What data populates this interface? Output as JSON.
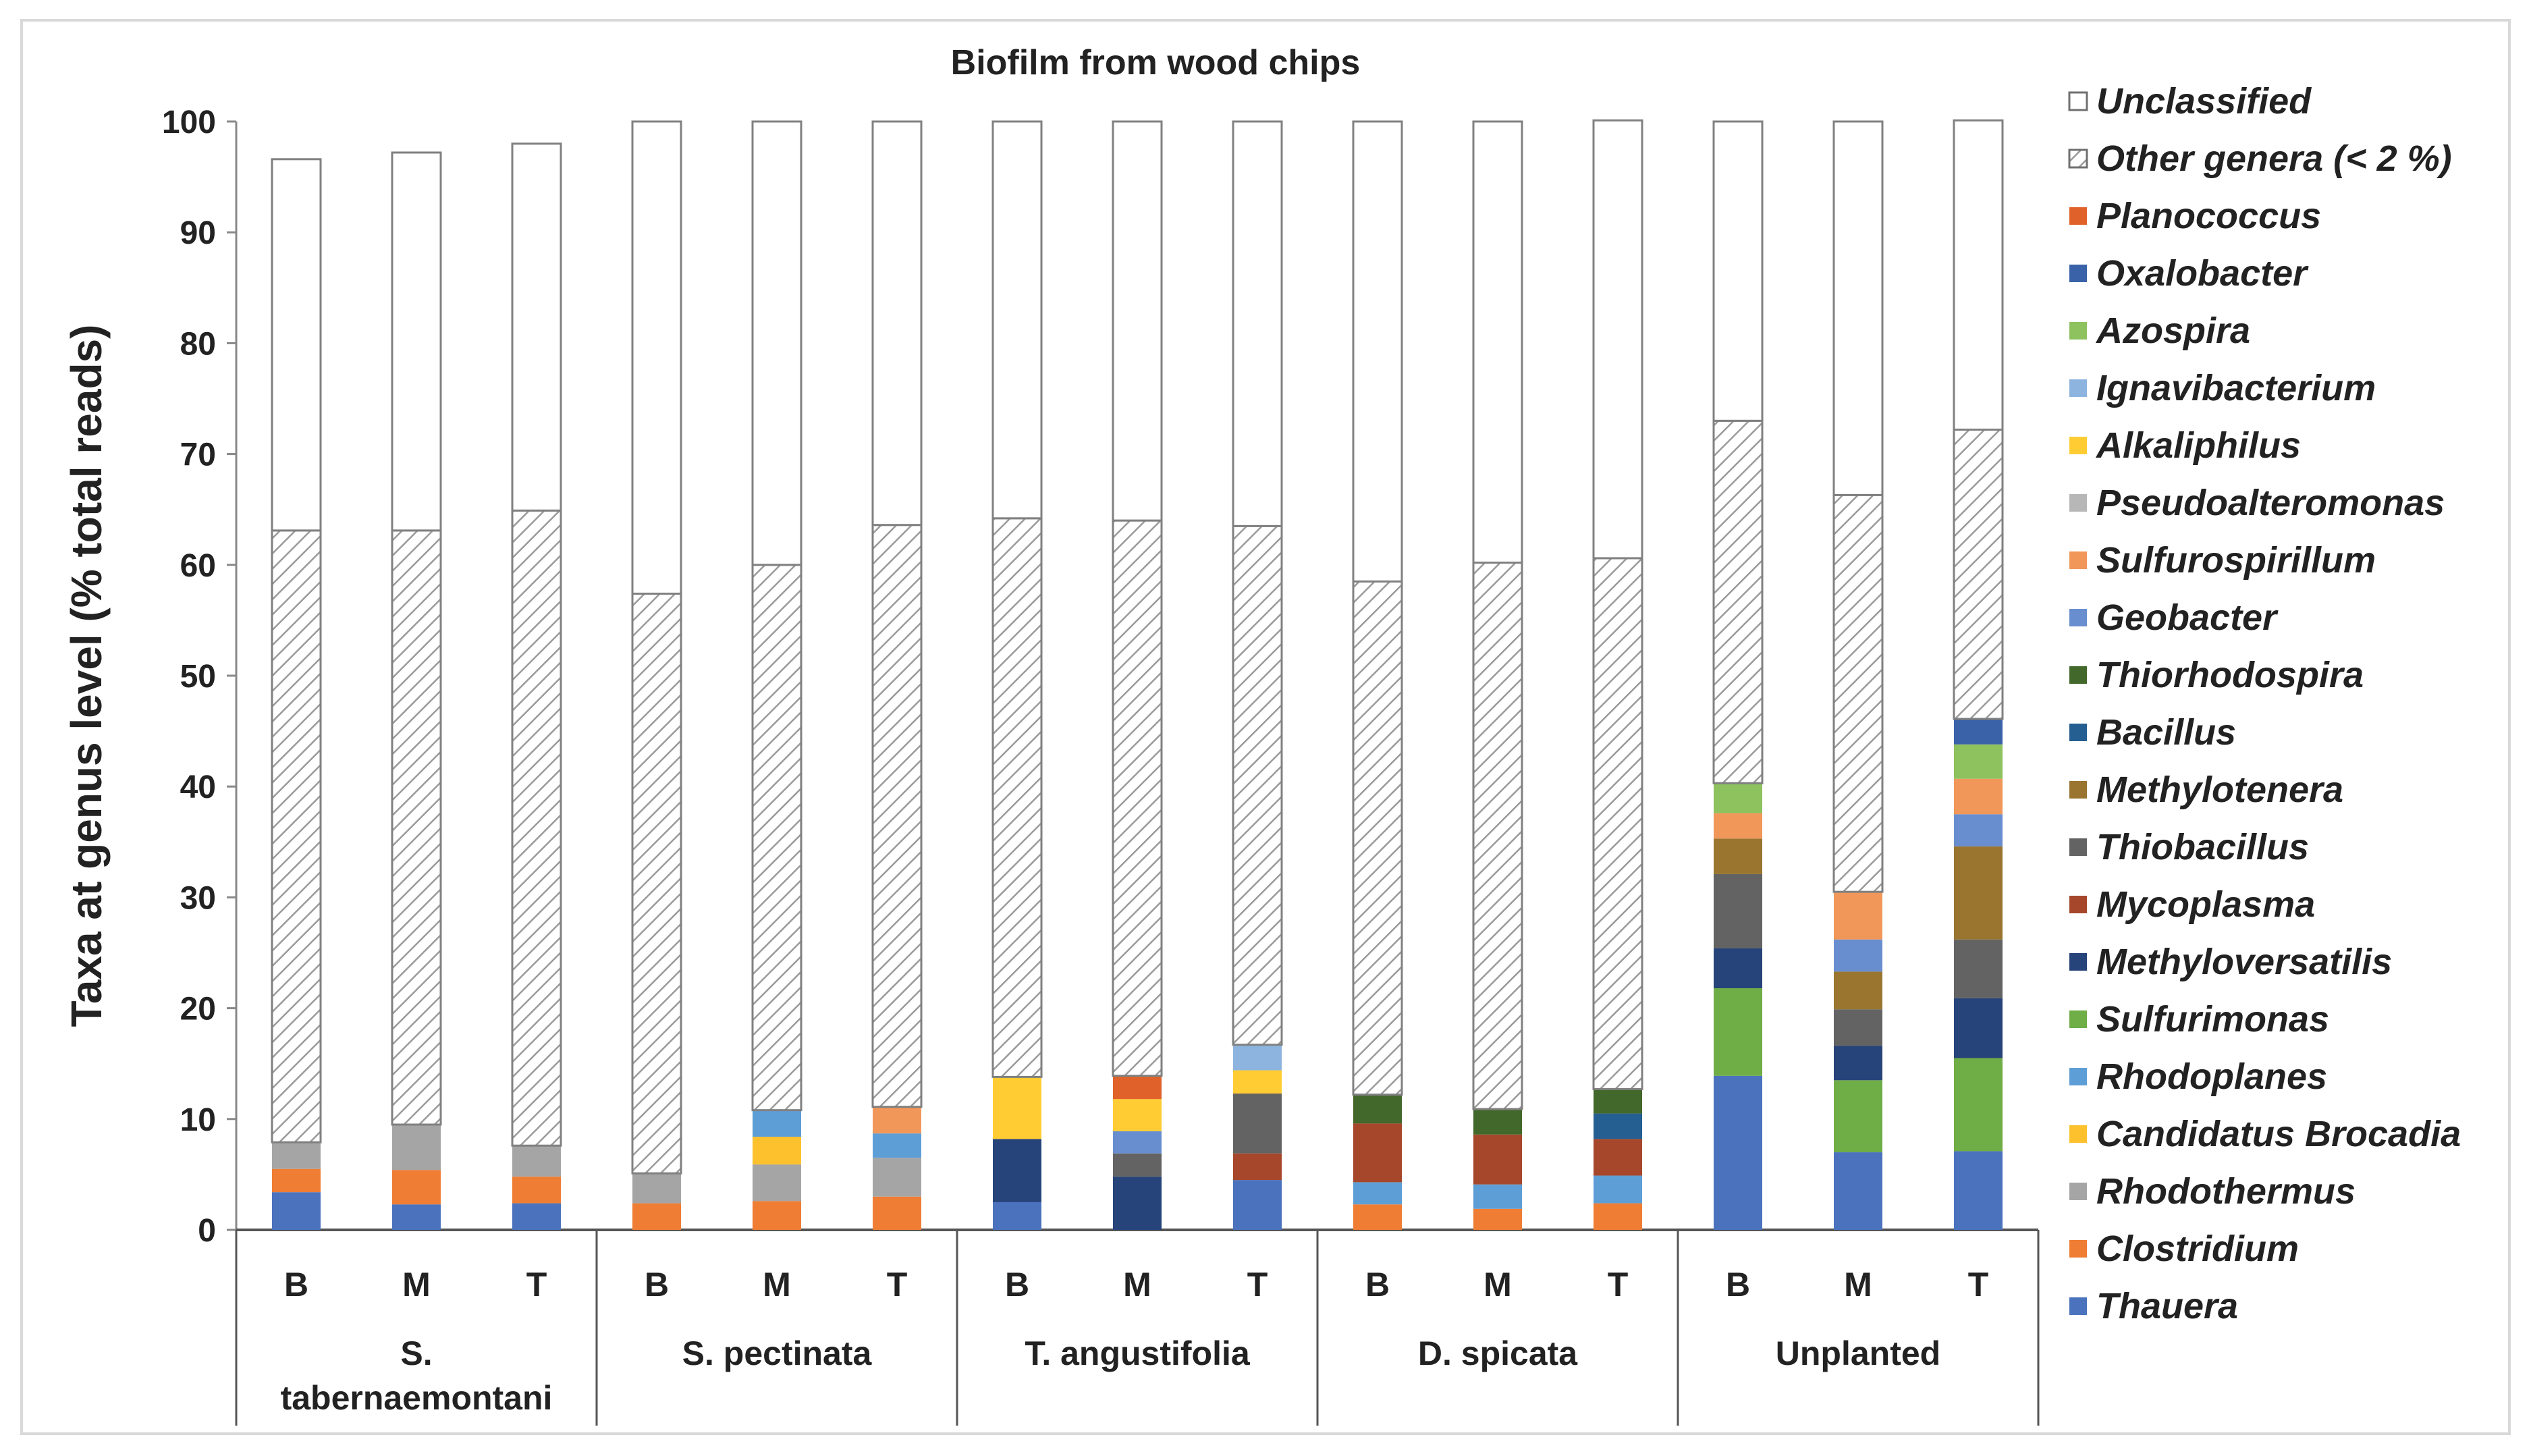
{
  "chart_data": {
    "type": "bar",
    "stacked": true,
    "title": "Biofilm from wood chips",
    "ylabel": "Taxa at genus level (% total reads)",
    "xlabel": "",
    "ylim": [
      0,
      100
    ],
    "yticks": [
      0,
      10,
      20,
      30,
      40,
      50,
      60,
      70,
      80,
      90,
      100
    ],
    "legend_position": "right",
    "groups": [
      {
        "label_lines": [
          "S.",
          "tabernaemontani"
        ],
        "bars": [
          "B",
          "M",
          "T"
        ]
      },
      {
        "label_lines": [
          "S. pectinata"
        ],
        "bars": [
          "B",
          "M",
          "T"
        ]
      },
      {
        "label_lines": [
          "T. angustifolia"
        ],
        "bars": [
          "B",
          "M",
          "T"
        ]
      },
      {
        "label_lines": [
          "D. spicata"
        ],
        "bars": [
          "B",
          "M",
          "T"
        ]
      },
      {
        "label_lines": [
          "Unplanted"
        ],
        "bars": [
          "B",
          "M",
          "T"
        ]
      }
    ],
    "categories": [
      "S. tabernaemontani B",
      "S. tabernaemontani M",
      "S. tabernaemontani T",
      "S. pectinata B",
      "S. pectinata M",
      "S. pectinata T",
      "T. angustifolia B",
      "T. angustifolia M",
      "T. angustifolia T",
      "D. spicata B",
      "D. spicata M",
      "D. spicata T",
      "Unplanted B",
      "Unplanted M",
      "Unplanted T"
    ],
    "series": [
      {
        "name": "Thauera",
        "color": "#4a72bd",
        "values": [
          3.4,
          2.3,
          2.4,
          0,
          0,
          0,
          2.5,
          0,
          4.5,
          0,
          0,
          0,
          13.9,
          7.0,
          7.1
        ]
      },
      {
        "name": "Clostridium",
        "color": "#ef7d33",
        "values": [
          2.1,
          3.1,
          2.4,
          2.4,
          2.6,
          3.0,
          0,
          0,
          0,
          2.3,
          1.9,
          2.4,
          0,
          0,
          0
        ]
      },
      {
        "name": "Rhodothermus",
        "color": "#a5a5a5",
        "values": [
          2.4,
          4.1,
          2.8,
          2.7,
          3.3,
          3.5,
          0,
          0,
          0,
          0,
          0,
          0,
          0,
          0,
          0
        ]
      },
      {
        "name": "Candidatus Brocadia",
        "color": "#fcc12d",
        "values": [
          0,
          0,
          0,
          0,
          2.5,
          0,
          0,
          0,
          0,
          0,
          0,
          0,
          0,
          0,
          0
        ]
      },
      {
        "name": "Rhodoplanes",
        "color": "#5e9ed6",
        "values": [
          0,
          0,
          0,
          0,
          2.4,
          2.2,
          0,
          0,
          0,
          2.0,
          2.2,
          2.5,
          0,
          0,
          0
        ]
      },
      {
        "name": "Sulfurimonas",
        "color": "#6fad46",
        "values": [
          0,
          0,
          0,
          0,
          0,
          0,
          0,
          0,
          0,
          0,
          0,
          0,
          7.9,
          6.5,
          8.4
        ]
      },
      {
        "name": "Methyloversatilis",
        "color": "#264479",
        "values": [
          0,
          0,
          0,
          0,
          0,
          0,
          5.7,
          4.8,
          0,
          0,
          0,
          0,
          3.6,
          3.1,
          5.4
        ]
      },
      {
        "name": "Mycoplasma",
        "color": "#a6472c",
        "values": [
          0,
          0,
          0,
          0,
          0,
          0,
          0,
          0,
          2.4,
          5.3,
          4.5,
          3.3,
          0,
          0,
          0
        ]
      },
      {
        "name": "Thiobacillus",
        "color": "#636363",
        "values": [
          0,
          0,
          0,
          0,
          0,
          0,
          0,
          2.1,
          5.4,
          0,
          0,
          0,
          6.7,
          3.3,
          5.3
        ]
      },
      {
        "name": "Methylotenera",
        "color": "#997530",
        "values": [
          0,
          0,
          0,
          0,
          0,
          0,
          0,
          0,
          0,
          0,
          0,
          0,
          3.2,
          3.4,
          8.4
        ]
      },
      {
        "name": "Bacillus",
        "color": "#255e91",
        "values": [
          0,
          0,
          0,
          0,
          0,
          0,
          0,
          0,
          0,
          0,
          0,
          2.3,
          0,
          0,
          0
        ]
      },
      {
        "name": "Thiorhodospira",
        "color": "#43682b",
        "values": [
          0,
          0,
          0,
          0,
          0,
          0,
          0,
          0,
          0,
          2.6,
          2.3,
          2.2,
          0,
          0,
          0
        ]
      },
      {
        "name": "Geobacter",
        "color": "#698ed0",
        "values": [
          0,
          0,
          0,
          0,
          0,
          0,
          0,
          2.0,
          0,
          0,
          0,
          0,
          0,
          2.9,
          2.9
        ]
      },
      {
        "name": "Sulfurospirillum",
        "color": "#f1975a",
        "values": [
          0,
          0,
          0,
          0,
          0,
          2.4,
          0,
          0,
          0,
          0,
          0,
          0,
          2.3,
          4.3,
          3.2
        ]
      },
      {
        "name": "Pseudoalteromonas",
        "color": "#b7b7b7",
        "values": [
          0,
          0,
          0,
          0,
          0,
          0,
          0,
          0,
          0,
          0,
          0,
          0,
          0,
          0,
          0
        ]
      },
      {
        "name": "Alkaliphilus",
        "color": "#ffcd33",
        "values": [
          0,
          0,
          0,
          0,
          0,
          0,
          5.6,
          2.9,
          2.1,
          0,
          0,
          0,
          0,
          0,
          0
        ]
      },
      {
        "name": "Ignavibacterium",
        "color": "#8cb4df",
        "values": [
          0,
          0,
          0,
          0,
          0,
          0,
          0,
          0,
          2.3,
          0,
          0,
          0,
          0,
          0,
          0
        ]
      },
      {
        "name": "Azospira",
        "color": "#8dc25f",
        "values": [
          0,
          0,
          0,
          0,
          0,
          0,
          0,
          0,
          0,
          0,
          0,
          0,
          2.7,
          0,
          3.1
        ]
      },
      {
        "name": "Oxalobacter",
        "color": "#3a62a8",
        "values": [
          0,
          0,
          0,
          0,
          0,
          0,
          0,
          0,
          0,
          0,
          0,
          0,
          0,
          0,
          2.3
        ]
      },
      {
        "name": "Planococcus",
        "color": "#e0622a",
        "values": [
          0,
          0,
          0,
          0,
          0,
          0,
          0,
          2.1,
          0,
          0,
          0,
          0,
          0,
          0,
          0
        ]
      },
      {
        "name": "Other genera (< 2 %)",
        "color": "hatch",
        "values": [
          55.2,
          53.6,
          57.3,
          52.3,
          49.2,
          52.5,
          50.4,
          50.1,
          46.8,
          46.3,
          49.3,
          47.9,
          32.7,
          35.8,
          26.1
        ]
      },
      {
        "name": "Unclassified",
        "color": "#ffffff",
        "values": [
          33.5,
          34.1,
          33.1,
          42.6,
          40.0,
          36.4,
          35.8,
          36.0,
          36.5,
          41.5,
          39.8,
          39.5,
          27.0,
          33.7,
          27.9
        ]
      }
    ]
  }
}
